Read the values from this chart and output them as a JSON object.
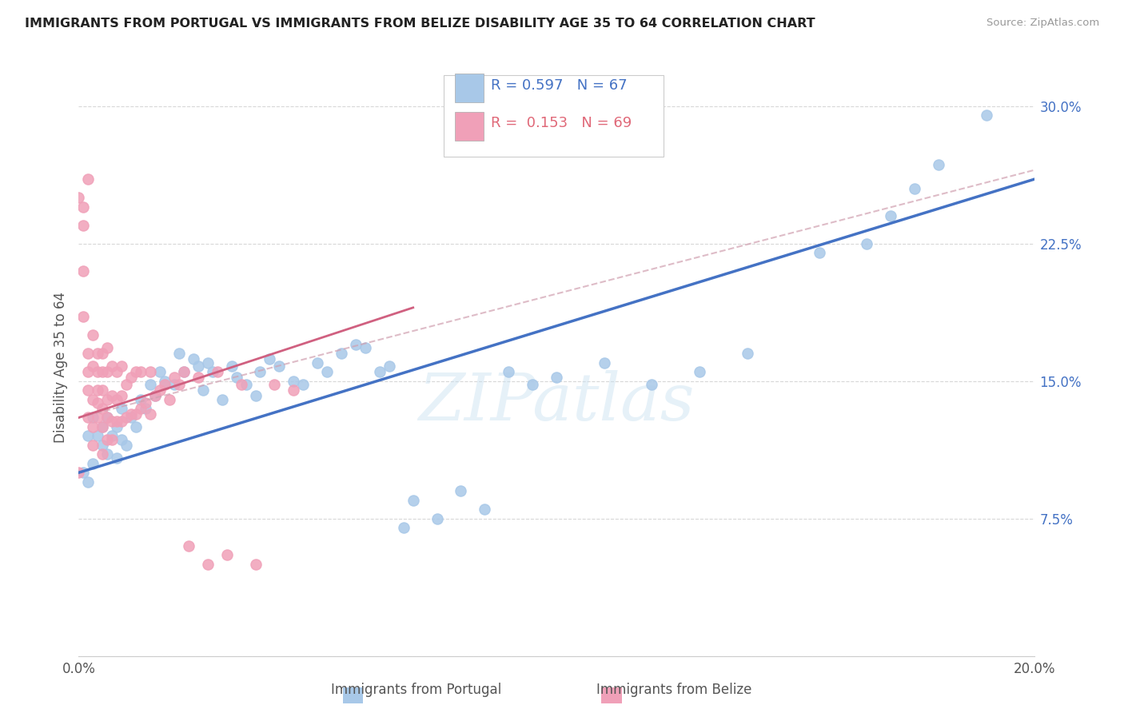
{
  "title": "IMMIGRANTS FROM PORTUGAL VS IMMIGRANTS FROM BELIZE DISABILITY AGE 35 TO 64 CORRELATION CHART",
  "source": "Source: ZipAtlas.com",
  "xlabel_bottom": "Immigrants from Portugal",
  "xlabel_bottom2": "Immigrants from Belize",
  "ylabel": "Disability Age 35 to 64",
  "x_min": 0.0,
  "x_max": 0.2,
  "y_min": 0.0,
  "y_max": 0.315,
  "yticks": [
    0.0,
    0.075,
    0.15,
    0.225,
    0.3
  ],
  "ytick_labels": [
    "",
    "7.5%",
    "15.0%",
    "22.5%",
    "30.0%"
  ],
  "xticks": [
    0.0,
    0.05,
    0.1,
    0.15,
    0.2
  ],
  "xtick_labels": [
    "0.0%",
    "",
    "",
    "",
    "20.0%"
  ],
  "R_portugal": 0.597,
  "N_portugal": 67,
  "R_belize": 0.153,
  "N_belize": 69,
  "color_portugal": "#a8c8e8",
  "color_belize": "#f0a0b8",
  "line_color_portugal": "#4472c4",
  "line_color_belize": "#d06080",
  "watermark": "ZIPatlas",
  "portugal_x": [
    0.001,
    0.002,
    0.002,
    0.003,
    0.003,
    0.004,
    0.005,
    0.005,
    0.006,
    0.006,
    0.007,
    0.008,
    0.008,
    0.009,
    0.009,
    0.01,
    0.011,
    0.012,
    0.013,
    0.014,
    0.015,
    0.016,
    0.017,
    0.018,
    0.02,
    0.021,
    0.022,
    0.024,
    0.025,
    0.026,
    0.027,
    0.028,
    0.03,
    0.032,
    0.033,
    0.035,
    0.037,
    0.038,
    0.04,
    0.042,
    0.045,
    0.047,
    0.05,
    0.052,
    0.055,
    0.058,
    0.06,
    0.063,
    0.065,
    0.068,
    0.07,
    0.075,
    0.08,
    0.085,
    0.09,
    0.095,
    0.1,
    0.11,
    0.12,
    0.13,
    0.14,
    0.155,
    0.165,
    0.17,
    0.175,
    0.18,
    0.19
  ],
  "portugal_y": [
    0.1,
    0.095,
    0.12,
    0.105,
    0.13,
    0.12,
    0.115,
    0.125,
    0.11,
    0.13,
    0.12,
    0.108,
    0.125,
    0.118,
    0.135,
    0.115,
    0.13,
    0.125,
    0.14,
    0.135,
    0.148,
    0.142,
    0.155,
    0.15,
    0.148,
    0.165,
    0.155,
    0.162,
    0.158,
    0.145,
    0.16,
    0.155,
    0.14,
    0.158,
    0.152,
    0.148,
    0.142,
    0.155,
    0.162,
    0.158,
    0.15,
    0.148,
    0.16,
    0.155,
    0.165,
    0.17,
    0.168,
    0.155,
    0.158,
    0.07,
    0.085,
    0.075,
    0.09,
    0.08,
    0.155,
    0.148,
    0.152,
    0.16,
    0.148,
    0.155,
    0.165,
    0.22,
    0.225,
    0.24,
    0.255,
    0.268,
    0.295
  ],
  "belize_x": [
    0.0,
    0.0,
    0.001,
    0.001,
    0.001,
    0.001,
    0.002,
    0.002,
    0.002,
    0.002,
    0.002,
    0.003,
    0.003,
    0.003,
    0.003,
    0.003,
    0.004,
    0.004,
    0.004,
    0.004,
    0.004,
    0.005,
    0.005,
    0.005,
    0.005,
    0.005,
    0.005,
    0.006,
    0.006,
    0.006,
    0.006,
    0.006,
    0.007,
    0.007,
    0.007,
    0.007,
    0.008,
    0.008,
    0.008,
    0.009,
    0.009,
    0.009,
    0.01,
    0.01,
    0.011,
    0.011,
    0.012,
    0.012,
    0.013,
    0.013,
    0.014,
    0.015,
    0.015,
    0.016,
    0.017,
    0.018,
    0.019,
    0.02,
    0.021,
    0.022,
    0.023,
    0.025,
    0.027,
    0.029,
    0.031,
    0.034,
    0.037,
    0.041,
    0.045
  ],
  "belize_y": [
    0.1,
    0.25,
    0.245,
    0.235,
    0.21,
    0.185,
    0.13,
    0.145,
    0.155,
    0.165,
    0.26,
    0.115,
    0.125,
    0.14,
    0.158,
    0.175,
    0.13,
    0.138,
    0.145,
    0.155,
    0.165,
    0.11,
    0.125,
    0.135,
    0.145,
    0.155,
    0.165,
    0.118,
    0.13,
    0.14,
    0.155,
    0.168,
    0.118,
    0.128,
    0.142,
    0.158,
    0.128,
    0.14,
    0.155,
    0.128,
    0.142,
    0.158,
    0.13,
    0.148,
    0.132,
    0.152,
    0.132,
    0.155,
    0.135,
    0.155,
    0.138,
    0.132,
    0.155,
    0.142,
    0.145,
    0.148,
    0.14,
    0.152,
    0.148,
    0.155,
    0.06,
    0.152,
    0.05,
    0.155,
    0.055,
    0.148,
    0.05,
    0.148,
    0.145
  ]
}
